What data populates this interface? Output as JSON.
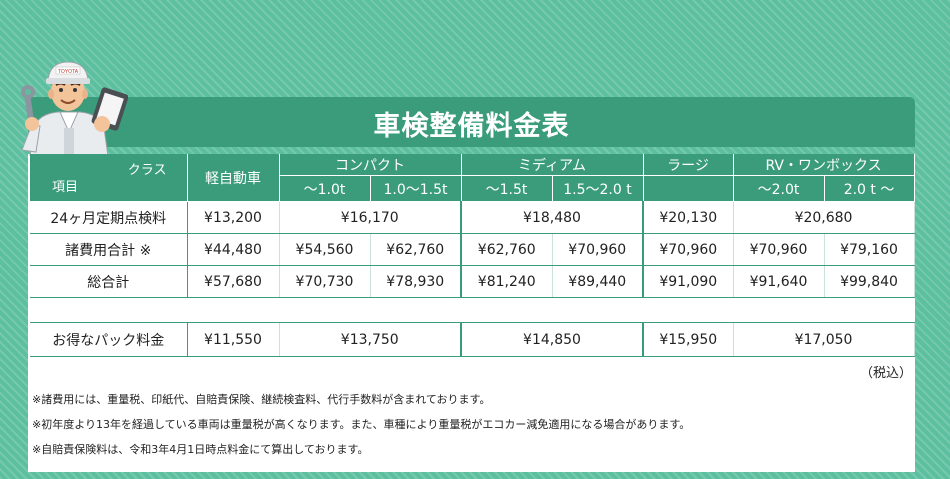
{
  "title": "車検整備料金表",
  "header": {
    "corner_class": "クラス",
    "corner_item": "項目",
    "groups": [
      "軽自動車",
      "コンパクト",
      "ミディアム",
      "ラージ",
      "RV・ワンボックス"
    ],
    "subs": [
      "～1.0t",
      "1.0～1.5t",
      "～1.5t",
      "1.5～2.0 t",
      "～2.0t",
      "2.0 t ～"
    ]
  },
  "rows": {
    "inspection": {
      "label": "24ヶ月定期点検料",
      "kei": "¥13,200",
      "compact": "¥16,170",
      "medium": "¥18,480",
      "large": "¥20,130",
      "rv": "¥20,680"
    },
    "expenses": {
      "label": "諸費用合計 ※",
      "values": [
        "¥44,480",
        "¥54,560",
        "¥62,760",
        "¥62,760",
        "¥70,960",
        "¥70,960",
        "¥70,960",
        "¥79,160"
      ]
    },
    "total": {
      "label": "総合計",
      "values": [
        "¥57,680",
        "¥70,730",
        "¥78,930",
        "¥81,240",
        "¥89,440",
        "¥91,090",
        "¥91,640",
        "¥99,840"
      ]
    },
    "pack": {
      "label": "お得なパック料金",
      "kei": "¥11,550",
      "compact": "¥13,750",
      "medium": "¥14,850",
      "large": "¥15,950",
      "rv": "¥17,050"
    }
  },
  "tax_note": "（税込）",
  "notes": [
    "※諸費用には、重量税、印紙代、自賠責保険、継続検査料、代行手数料が含まれております。",
    "※初年度より13年を経過している車両は重量税が高くなります。また、車種により重量税がエコカー減免適用になる場合があります。",
    "※自賠責保険料は、令和3年4月1日時点料金にて算出しております。"
  ],
  "mascot_cap_text": "TOYOTA",
  "colors": {
    "accent": "#3a9c7b",
    "background": "#5cbf9e"
  }
}
